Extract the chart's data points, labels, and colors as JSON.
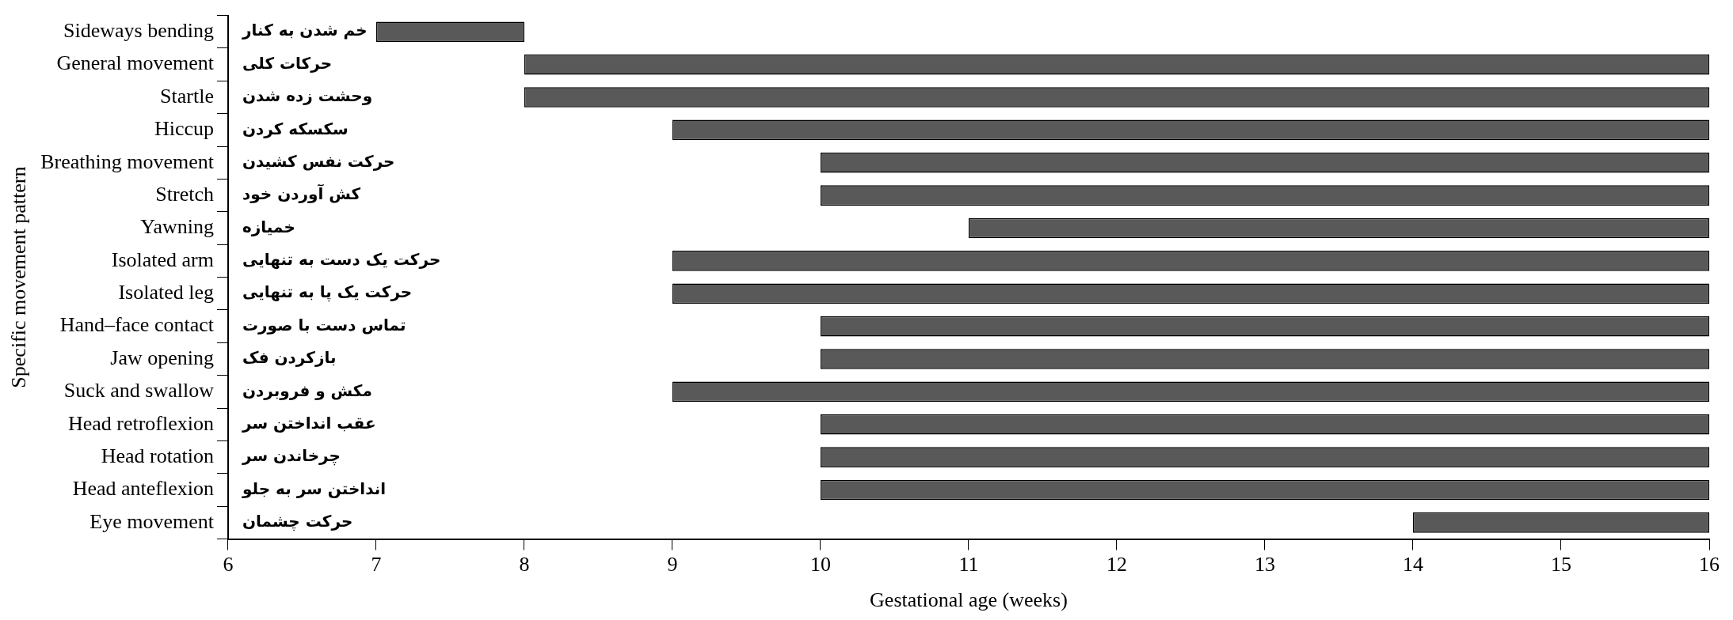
{
  "chart_data": {
    "type": "bar",
    "orientation": "horizontal",
    "xlabel": "Gestational age (weeks)",
    "ylabel": "Specific movement pattern",
    "categories": [
      "Sideways bending",
      "General movement",
      "Startle",
      "Hiccup",
      "Breathing movement",
      "Stretch",
      "Yawning",
      "Isolated arm",
      "Isolated leg",
      "Hand–face contact",
      "Jaw opening",
      "Suck and swallow",
      "Head retroflexion",
      "Head rotation",
      "Head anteflexion",
      "Eye movement"
    ],
    "base": [
      7,
      8,
      8,
      9,
      10,
      10,
      11,
      9,
      9,
      10,
      10,
      9,
      10,
      10,
      10,
      14
    ],
    "values": [
      1,
      8,
      8,
      7,
      6,
      6,
      5,
      7,
      7,
      6,
      6,
      7,
      6,
      6,
      6,
      2
    ],
    "color": "#595959",
    "xlim": [
      6,
      16
    ],
    "xticks": [
      6,
      7,
      8,
      9,
      10,
      11,
      12,
      13,
      14,
      15,
      16
    ],
    "grid": false,
    "legend": false,
    "annotations": [
      "خم شدن به کنار",
      "حرکات کلی",
      "وحشت زده شدن",
      "سکسکه کردن",
      "حرکت نفس کشیدن",
      "کش آوردن خود",
      "خمیازه",
      "حرکت یک دست به تنهایی",
      "حرکت یک پا به تنهایی",
      "تماس دست با صورت",
      "بازکردن فک",
      "مکش و فروبردن",
      "عقب انداختن سر",
      "چرخاندن سر",
      "انداختن سر به جلو",
      "حرکت چشمان"
    ]
  }
}
